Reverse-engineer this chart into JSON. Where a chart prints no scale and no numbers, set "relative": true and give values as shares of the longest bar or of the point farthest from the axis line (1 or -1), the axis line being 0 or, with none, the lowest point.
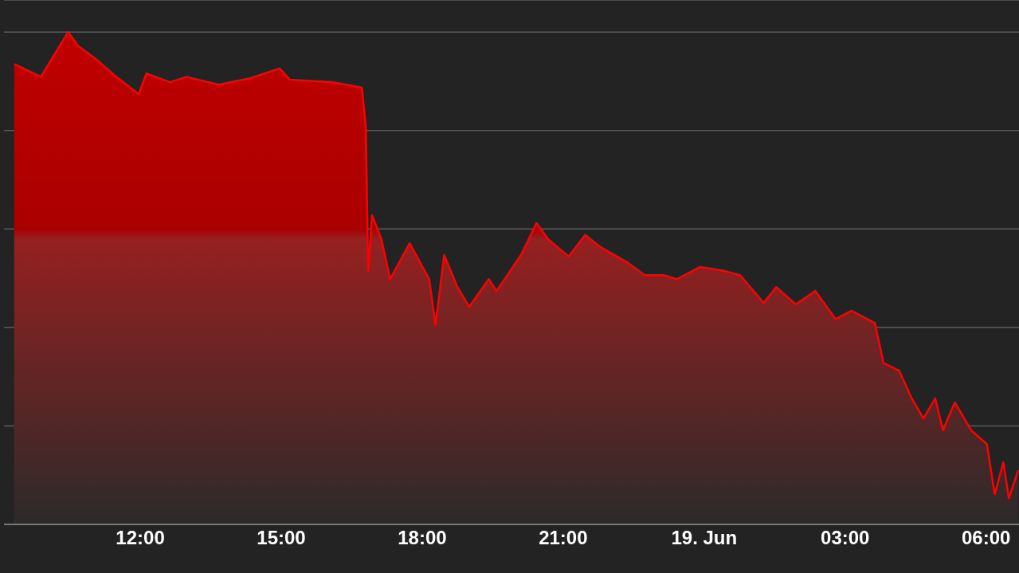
{
  "chart_data": {
    "type": "area",
    "relative": true,
    "x": [
      "--06-18T09:19",
      "--06-18T09:31",
      "--06-18T09:53",
      "--06-18T10:03",
      "--06-18T10:28",
      "--06-18T10:41",
      "--06-18T11:02",
      "--06-18T11:28",
      "--06-18T11:58",
      "--06-18T12:08",
      "--06-18T12:38",
      "--06-18T12:59",
      "--06-18T13:40",
      "--06-18T14:20",
      "--06-18T14:58",
      "--06-18T15:11",
      "--06-18T16:07",
      "--06-18T16:43",
      "--06-18T16:48",
      "--06-18T16:51",
      "--06-18T16:56",
      "--06-18T17:08",
      "--06-18T17:19",
      "--06-18T17:44",
      "--06-18T18:09",
      "--06-18T18:17",
      "--06-18T18:28",
      "--06-18T18:45",
      "--06-18T19:00",
      "--06-18T19:25",
      "--06-18T19:35",
      "--06-18T20:06",
      "--06-18T20:26",
      "--06-18T20:41",
      "--06-18T21:07",
      "--06-18T21:28",
      "--06-18T21:48",
      "--06-18T22:23",
      "--06-18T22:44",
      "--06-18T23:09",
      "--06-18T23:25",
      "--06-18T23:55",
      "--06-19T00:25",
      "--06-19T00:46",
      "--06-19T01:16",
      "--06-19T01:32",
      "--06-19T01:57",
      "--06-19T02:22",
      "--06-19T02:48",
      "--06-19T03:08",
      "--06-19T03:38",
      "--06-19T03:49",
      "--06-19T04:09",
      "--06-19T04:25",
      "--06-19T04:40",
      "--06-19T04:55",
      "--06-19T05:05",
      "--06-19T05:20",
      "--06-19T05:41",
      "--06-19T06:01",
      "--06-19T06:11",
      "--06-19T06:22",
      "--06-19T06:29",
      "--06-19T06:41"
    ],
    "values": [
      0.935,
      0.926,
      0.909,
      0.935,
      1.0,
      0.971,
      0.947,
      0.911,
      0.874,
      0.916,
      0.898,
      0.909,
      0.893,
      0.906,
      0.926,
      0.903,
      0.898,
      0.887,
      0.806,
      0.515,
      0.628,
      0.579,
      0.498,
      0.571,
      0.498,
      0.405,
      0.547,
      0.482,
      0.442,
      0.498,
      0.474,
      0.547,
      0.612,
      0.579,
      0.544,
      0.588,
      0.563,
      0.531,
      0.506,
      0.506,
      0.498,
      0.523,
      0.515,
      0.506,
      0.45,
      0.482,
      0.447,
      0.474,
      0.417,
      0.434,
      0.409,
      0.328,
      0.312,
      0.256,
      0.215,
      0.256,
      0.191,
      0.248,
      0.191,
      0.163,
      0.061,
      0.126,
      0.053,
      0.11
    ],
    "color": "#ff0000",
    "xlim": [
      "--06-18T09:06",
      "--06-19T06:42"
    ],
    "xticks": [
      {
        "value": "--06-18T12:00",
        "label": "12:00"
      },
      {
        "value": "--06-18T15:00",
        "label": "15:00"
      },
      {
        "value": "--06-18T18:00",
        "label": "18:00"
      },
      {
        "value": "--06-18T21:00",
        "label": "21:00"
      },
      {
        "value": "--06-19T00:00",
        "label": "19. Jun"
      },
      {
        "value": "--06-19T03:00",
        "label": "03:00"
      },
      {
        "value": "--06-19T06:00",
        "label": "06:00"
      }
    ],
    "grid": "y",
    "legend": false
  }
}
